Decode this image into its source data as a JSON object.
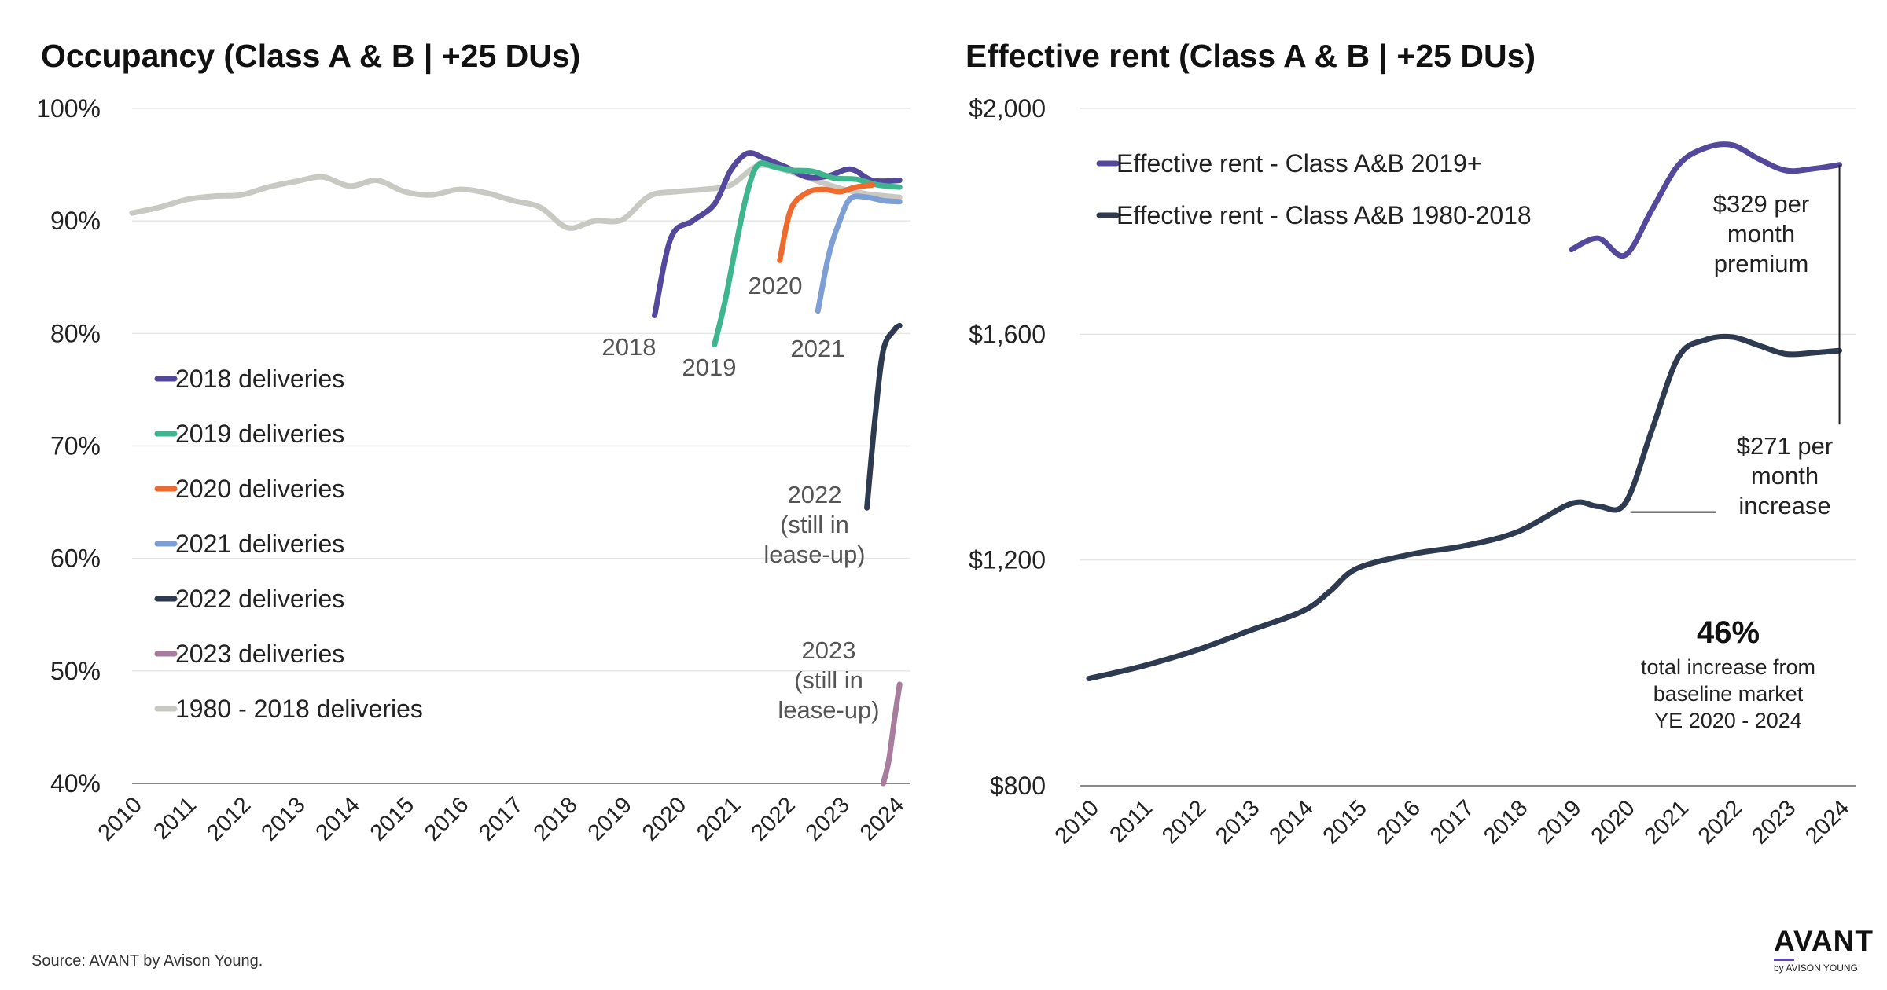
{
  "title_left": "Occupancy (Class A & B | +25 DUs)",
  "title_right": "Effective rent (Class A & B | +25 DUs)",
  "source": "Source: AVANT by Avison Young.",
  "logo": {
    "main": "AVANT",
    "sub": "by AVISON YOUNG"
  },
  "chart_data": [
    {
      "type": "line",
      "title": "Occupancy (Class A & B | +25 DUs)",
      "x_ticks": [
        "2010",
        "2011",
        "2012",
        "2013",
        "2014",
        "2015",
        "2016",
        "2017",
        "2018",
        "2019",
        "2020",
        "2021",
        "2022",
        "2023",
        "2024"
      ],
      "y_ticks": [
        {
          "v": 100,
          "label": "100%"
        },
        {
          "v": 90,
          "label": "90%"
        },
        {
          "v": 80,
          "label": "80%"
        },
        {
          "v": 70,
          "label": "70%"
        },
        {
          "v": 60,
          "label": "60%"
        },
        {
          "v": 50,
          "label": "50%"
        },
        {
          "v": 40,
          "label": "40%"
        }
      ],
      "ylim": [
        40,
        100
      ],
      "xlim": [
        2010,
        2024.3
      ],
      "legend_position": "left",
      "series": [
        {
          "name": "1980 - 2018 deliveries",
          "color": "#c9c9c4",
          "x": [
            2010,
            2010.5,
            2011,
            2011.5,
            2012,
            2012.5,
            2013,
            2013.5,
            2014,
            2014.5,
            2015,
            2015.5,
            2016,
            2016.5,
            2017,
            2017.5,
            2018,
            2018.5,
            2019,
            2019.5,
            2020,
            2020.5,
            2021,
            2021.5,
            2022,
            2022.5,
            2023,
            2023.5,
            2024.1
          ],
          "y": [
            90.7,
            91.2,
            91.9,
            92.2,
            92.3,
            93.0,
            93.5,
            93.9,
            93.1,
            93.6,
            92.6,
            92.3,
            92.8,
            92.5,
            91.8,
            91.2,
            89.4,
            90.0,
            90.1,
            92.2,
            92.6,
            92.8,
            93.2,
            94.9,
            94.5,
            93.7,
            92.9,
            92.4,
            92.1
          ]
        },
        {
          "name": "2018 deliveries",
          "color": "#54489c",
          "x": [
            2019.6,
            2019.9,
            2020.3,
            2020.7,
            2021.0,
            2021.3,
            2021.6,
            2022.0,
            2022.4,
            2022.8,
            2023.2,
            2023.6,
            2024.1
          ],
          "y": [
            81.6,
            88.5,
            90.0,
            91.5,
            94.5,
            96.0,
            95.6,
            94.8,
            93.9,
            94.0,
            94.6,
            93.6,
            93.6
          ]
        },
        {
          "name": "2019 deliveries",
          "color": "#3fb58d",
          "x": [
            2020.7,
            2020.9,
            2021.1,
            2021.3,
            2021.5,
            2021.8,
            2022.1,
            2022.5,
            2022.9,
            2023.3,
            2023.7,
            2024.1
          ],
          "y": [
            79.0,
            83.0,
            88.0,
            92.5,
            95.0,
            94.8,
            94.5,
            94.4,
            93.8,
            93.7,
            93.2,
            93.0
          ]
        },
        {
          "name": "2020 deliveries",
          "color": "#ef6a2d",
          "x": [
            2021.9,
            2022.1,
            2022.4,
            2022.7,
            2023.0,
            2023.3,
            2023.6
          ],
          "y": [
            86.5,
            91.0,
            92.5,
            92.8,
            92.6,
            93.0,
            93.2
          ]
        },
        {
          "name": "2021 deliveries",
          "color": "#7e9fd6",
          "x": [
            2022.6,
            2022.8,
            2023.0,
            2023.2,
            2023.5,
            2023.8,
            2024.1
          ],
          "y": [
            82.0,
            87.0,
            90.0,
            92.0,
            92.1,
            91.8,
            91.7
          ]
        },
        {
          "name": "2022 deliveries",
          "color": "#2e3a4f",
          "x": [
            2023.5,
            2023.65,
            2023.8,
            2024.0,
            2024.1
          ],
          "y": [
            64.5,
            72.5,
            78.5,
            80.3,
            80.7
          ]
        },
        {
          "name": "2023 deliveries",
          "color": "#a87c9c",
          "x": [
            2023.8,
            2023.9,
            2024.0,
            2024.1
          ],
          "y": [
            40.0,
            42.0,
            45.5,
            48.8
          ]
        }
      ],
      "annotations": {
        "y2018": "2018",
        "y2019": "2019",
        "y2020": "2020",
        "y2021": "2021",
        "y2022": [
          "2022",
          "(still in",
          "lease-up)"
        ],
        "y2023": [
          "2023",
          "(still in",
          "lease-up)"
        ]
      }
    },
    {
      "type": "line",
      "title": "Effective rent (Class A & B | +25 DUs)",
      "x_ticks": [
        "2010",
        "2011",
        "2012",
        "2013",
        "2014",
        "2015",
        "2016",
        "2017",
        "2018",
        "2019",
        "2020",
        "2021",
        "2022",
        "2023",
        "2024"
      ],
      "y_ticks": [
        {
          "v": 2000,
          "label": "$2,000"
        },
        {
          "v": 1600,
          "label": "$1,600"
        },
        {
          "v": 1200,
          "label": "$1,200"
        },
        {
          "v": 800,
          "label": "$800"
        }
      ],
      "ylim": [
        800,
        2000
      ],
      "xlim": [
        2010,
        2024.3
      ],
      "legend_position": "top-left",
      "series": [
        {
          "name": "Effective rent - Class A&B 2019+",
          "color": "#54489c",
          "x": [
            2019.0,
            2019.5,
            2020.0,
            2020.5,
            2021.0,
            2021.5,
            2022.0,
            2022.5,
            2023.0,
            2023.5,
            2024.0
          ],
          "y": [
            1750,
            1770,
            1740,
            1820,
            1900,
            1930,
            1935,
            1910,
            1890,
            1893,
            1900
          ]
        },
        {
          "name": "Effective rent - Class A&B 1980-2018",
          "color": "#2e3a4f",
          "x": [
            2010,
            2011,
            2012,
            2013,
            2014,
            2014.5,
            2015,
            2016,
            2017,
            2018,
            2019,
            2019.5,
            2020,
            2020.5,
            2021,
            2021.5,
            2022,
            2022.5,
            2023,
            2023.5,
            2024
          ],
          "y": [
            990,
            1012,
            1040,
            1075,
            1110,
            1145,
            1185,
            1210,
            1225,
            1250,
            1300,
            1295,
            1300,
            1430,
            1560,
            1590,
            1595,
            1580,
            1565,
            1567,
            1571
          ]
        }
      ],
      "annotations": {
        "premium": [
          "$329 per",
          "month",
          "premium"
        ],
        "increase": [
          "$271 per",
          "month",
          "increase"
        ],
        "pct": "46%",
        "pct_desc": [
          "total increase from",
          "baseline market",
          "YE 2020 - 2024"
        ]
      }
    }
  ]
}
